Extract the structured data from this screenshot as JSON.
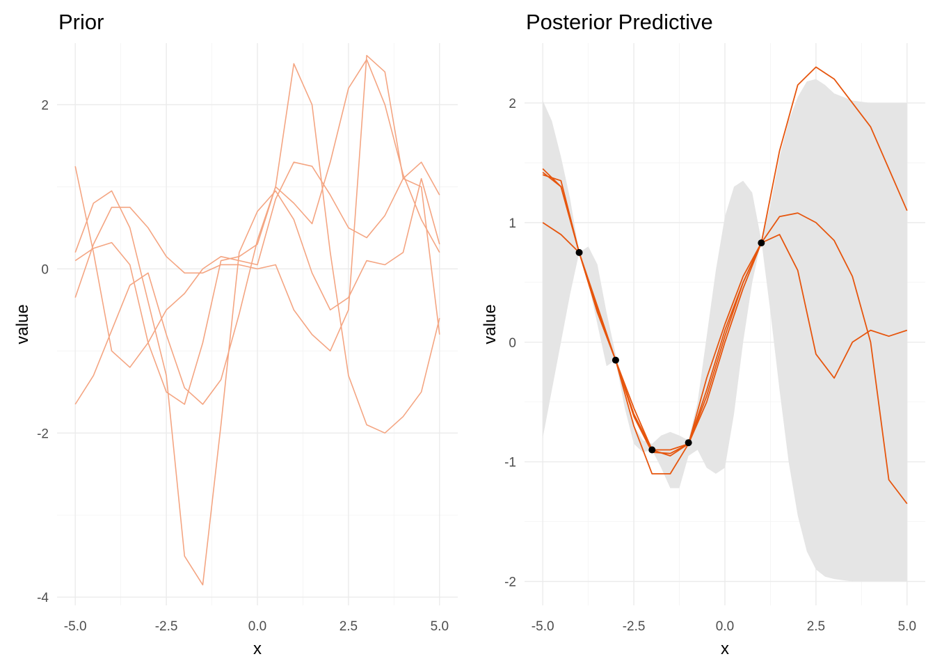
{
  "chart_data": [
    {
      "type": "line",
      "title": "Prior",
      "xlabel": "x",
      "ylabel": "value",
      "xlim": [
        -5.5,
        5.5
      ],
      "ylim": [
        -4.1,
        2.75
      ],
      "xticks": [
        -5,
        -2.5,
        0,
        2.5,
        5
      ],
      "xtick_labels": [
        "-5.0",
        "-2.5",
        "0.0",
        "2.5",
        "5.0"
      ],
      "yticks": [
        -4,
        -2,
        0,
        2
      ],
      "ytick_labels": [
        "-4",
        "-2",
        "0",
        "2"
      ],
      "grid": true,
      "line_color": "#f4a582",
      "series": [
        {
          "x": [
            -5.0,
            -4.5,
            -4.0,
            -3.5,
            -3.0,
            -2.5,
            -2.0,
            -1.5,
            -1.0,
            -0.5,
            0.0,
            0.5,
            1.0,
            1.5,
            2.0,
            2.5,
            3.0,
            3.5,
            4.0,
            4.5,
            5.0
          ],
          "values": [
            0.1,
            0.25,
            0.32,
            0.05,
            -0.9,
            -1.5,
            -1.65,
            -0.9,
            0.1,
            0.15,
            0.3,
            1.0,
            2.5,
            2.0,
            0.2,
            -1.3,
            -1.9,
            -2.0,
            -1.8,
            -1.5,
            -0.6
          ]
        },
        {
          "x": [
            -5.0,
            -4.5,
            -4.0,
            -3.5,
            -3.0,
            -2.5,
            -2.0,
            -1.5,
            -1.0,
            -0.5,
            0.0,
            0.5,
            1.0,
            1.5,
            2.0,
            2.5,
            3.0,
            3.5,
            4.0,
            4.5,
            5.0
          ],
          "values": [
            1.25,
            0.2,
            -1.0,
            -1.2,
            -0.9,
            -0.5,
            -0.3,
            0.0,
            0.15,
            0.1,
            0.05,
            0.85,
            1.3,
            1.25,
            0.9,
            0.5,
            0.38,
            0.65,
            1.1,
            1.3,
            0.9
          ]
        },
        {
          "x": [
            -5.0,
            -4.5,
            -4.0,
            -3.5,
            -3.0,
            -2.5,
            -2.0,
            -1.5,
            -1.0,
            -0.5,
            0.0,
            0.5,
            1.0,
            1.5,
            2.0,
            2.5,
            3.0,
            3.5,
            4.0,
            4.5,
            5.0
          ],
          "values": [
            0.2,
            0.8,
            0.95,
            0.5,
            -0.4,
            -1.3,
            -3.5,
            -3.85,
            -1.9,
            0.2,
            0.7,
            0.95,
            0.6,
            -0.05,
            -0.5,
            -0.35,
            0.1,
            0.05,
            0.2,
            1.1,
            0.3
          ]
        },
        {
          "x": [
            -5.0,
            -4.5,
            -4.0,
            -3.5,
            -3.0,
            -2.5,
            -2.0,
            -1.5,
            -1.0,
            -0.5,
            0.0,
            0.5,
            1.0,
            1.5,
            2.0,
            2.5,
            3.0,
            3.5,
            4.0,
            4.5,
            5.0
          ],
          "values": [
            -0.35,
            0.3,
            0.75,
            0.75,
            0.5,
            0.15,
            -0.05,
            -0.05,
            0.05,
            0.05,
            0.0,
            0.05,
            -0.5,
            -0.8,
            -1.0,
            -0.5,
            2.6,
            2.4,
            1.1,
            1.0,
            -0.8
          ]
        },
        {
          "x": [
            -5.0,
            -4.5,
            -4.0,
            -3.5,
            -3.0,
            -2.5,
            -2.0,
            -1.5,
            -1.0,
            -0.5,
            0.0,
            0.5,
            1.0,
            1.5,
            2.0,
            2.5,
            3.0,
            3.5,
            4.0,
            4.5,
            5.0
          ],
          "values": [
            -1.65,
            -1.3,
            -0.75,
            -0.2,
            -0.05,
            -0.8,
            -1.45,
            -1.65,
            -1.35,
            -0.55,
            0.35,
            1.0,
            0.8,
            0.55,
            1.3,
            2.2,
            2.55,
            2.0,
            1.15,
            0.6,
            0.2
          ]
        }
      ]
    },
    {
      "type": "line",
      "title": "Posterior Predictive",
      "xlabel": "x",
      "ylabel": "value",
      "xlim": [
        -5.5,
        5.5
      ],
      "ylim": [
        -2.2,
        2.5
      ],
      "xticks": [
        -5,
        -2.5,
        0,
        2.5,
        5
      ],
      "xtick_labels": [
        "-5.0",
        "-2.5",
        "0.0",
        "2.5",
        "5.0"
      ],
      "yticks": [
        -2,
        -1,
        0,
        1,
        2
      ],
      "ytick_labels": [
        "-2",
        "-1",
        "0",
        "1",
        "2"
      ],
      "grid": true,
      "line_color": "#e6550d",
      "band_color": "#e5e5e5",
      "band": {
        "x": [
          -5.0,
          -4.75,
          -4.5,
          -4.25,
          -4.0,
          -3.75,
          -3.5,
          -3.25,
          -3.0,
          -2.75,
          -2.5,
          -2.25,
          -2.0,
          -1.75,
          -1.5,
          -1.25,
          -1.0,
          -0.75,
          -0.5,
          -0.25,
          0.0,
          0.25,
          0.5,
          0.75,
          1.0,
          1.25,
          1.5,
          1.75,
          2.0,
          2.25,
          2.5,
          2.75,
          3.0,
          3.5,
          4.0,
          4.5,
          5.0
        ],
        "upper": [
          2.02,
          1.85,
          1.55,
          1.2,
          0.75,
          0.8,
          0.65,
          0.25,
          -0.1,
          -0.45,
          -0.7,
          -0.82,
          -0.85,
          -0.78,
          -0.75,
          -0.78,
          -0.82,
          -0.5,
          0.05,
          0.6,
          1.05,
          1.3,
          1.35,
          1.25,
          0.85,
          1.15,
          1.55,
          1.85,
          2.05,
          2.18,
          2.2,
          2.15,
          2.08,
          2.02,
          2.0,
          2.0,
          2.0
        ],
        "lower": [
          -0.8,
          -0.4,
          0.0,
          0.4,
          0.75,
          0.5,
          0.15,
          -0.2,
          -0.15,
          -0.55,
          -0.85,
          -0.92,
          -0.9,
          -1.05,
          -1.22,
          -1.22,
          -0.95,
          -0.9,
          -1.05,
          -1.1,
          -1.05,
          -0.6,
          0.0,
          0.5,
          0.85,
          0.25,
          -0.4,
          -1.0,
          -1.45,
          -1.75,
          -1.9,
          -1.96,
          -1.98,
          -2.0,
          -2.0,
          -2.0,
          -2.0
        ]
      },
      "series": [
        {
          "x": [
            -5.0,
            -4.5,
            -4.0,
            -3.5,
            -3.0,
            -2.5,
            -2.0,
            -1.5,
            -1.0,
            -0.5,
            0.0,
            0.5,
            1.0,
            1.5,
            2.0,
            2.5,
            3.0,
            3.5,
            4.0,
            4.5,
            5.0
          ],
          "values": [
            1.45,
            1.3,
            0.75,
            0.25,
            -0.15,
            -0.6,
            -0.9,
            -0.95,
            -0.85,
            -0.5,
            0.0,
            0.45,
            0.83,
            1.6,
            2.15,
            2.3,
            2.2,
            2.0,
            1.8,
            1.45,
            1.1
          ]
        },
        {
          "x": [
            -5.0,
            -4.5,
            -4.0,
            -3.5,
            -3.0,
            -2.5,
            -2.0,
            -1.5,
            -1.0,
            -0.5,
            0.0,
            0.5,
            1.0,
            1.5,
            2.0,
            2.5,
            3.0,
            3.5,
            4.0,
            4.5,
            5.0
          ],
          "values": [
            1.0,
            0.9,
            0.75,
            0.3,
            -0.15,
            -0.55,
            -0.9,
            -0.9,
            -0.85,
            -0.3,
            0.15,
            0.55,
            0.83,
            1.05,
            1.08,
            1.0,
            0.85,
            0.55,
            0.0,
            -1.15,
            -1.35
          ]
        },
        {
          "x": [
            -5.0,
            -4.5,
            -4.0,
            -3.5,
            -3.0,
            -2.5,
            -2.0,
            -1.5,
            -1.0,
            -0.5,
            0.0,
            0.5,
            1.0,
            1.5,
            2.0,
            2.5,
            3.0,
            3.5,
            4.0,
            4.5,
            5.0
          ],
          "values": [
            1.4,
            1.35,
            0.75,
            0.25,
            -0.15,
            -0.7,
            -1.1,
            -1.1,
            -0.85,
            -0.4,
            0.1,
            0.5,
            0.83,
            0.9,
            0.6,
            -0.1,
            -0.3,
            0.0,
            0.1,
            0.05,
            0.1
          ]
        },
        {
          "x": [
            -5.0,
            -4.5,
            -4.0,
            -3.5,
            -3.0,
            -2.5,
            -2.0,
            -1.5,
            -1.0,
            -0.5,
            0.0,
            0.5,
            1.0
          ],
          "values": [
            1.42,
            1.3,
            0.75,
            0.28,
            -0.15,
            -0.62,
            -0.92,
            -0.93,
            -0.85,
            -0.45,
            0.05,
            0.5,
            0.83
          ]
        }
      ],
      "observed_points": {
        "x": [
          -4.0,
          -3.0,
          -2.0,
          -1.0,
          1.0
        ],
        "y": [
          0.75,
          -0.15,
          -0.9,
          -0.84,
          0.83
        ]
      }
    }
  ]
}
